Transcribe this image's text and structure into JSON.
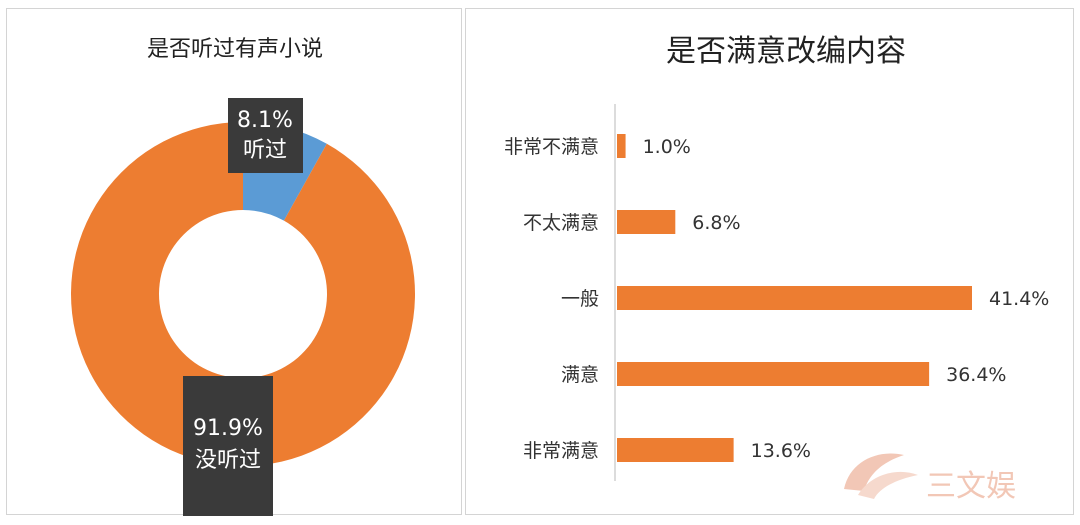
{
  "colors": {
    "orange": "#ED7D31",
    "blue": "#5B9BD5",
    "callout_bg": "#3a3a3a",
    "watermark": "#f2c7b6"
  },
  "chart_data": [
    {
      "type": "pie",
      "title": "是否听过有声小说",
      "donut": true,
      "slices": [
        {
          "label": "听过",
          "value": 8.1,
          "value_label": "8.1%",
          "color": "#5B9BD5"
        },
        {
          "label": "没听过",
          "value": 91.9,
          "value_label": "91.9%",
          "color": "#ED7D31"
        }
      ]
    },
    {
      "type": "bar",
      "orientation": "horizontal",
      "title": "是否满意改编内容",
      "categories": [
        "非常不满意",
        "不太满意",
        "一般",
        "满意",
        "非常满意"
      ],
      "values": [
        1.0,
        6.8,
        41.4,
        36.4,
        13.6
      ],
      "value_labels": [
        "1.0%",
        "6.8%",
        "41.4%",
        "36.4%",
        "13.6%"
      ],
      "xlim": [
        0,
        41.4
      ],
      "color": "#ED7D31",
      "grid": false,
      "legend": "none"
    }
  ],
  "watermark": {
    "text": "三文娱"
  }
}
